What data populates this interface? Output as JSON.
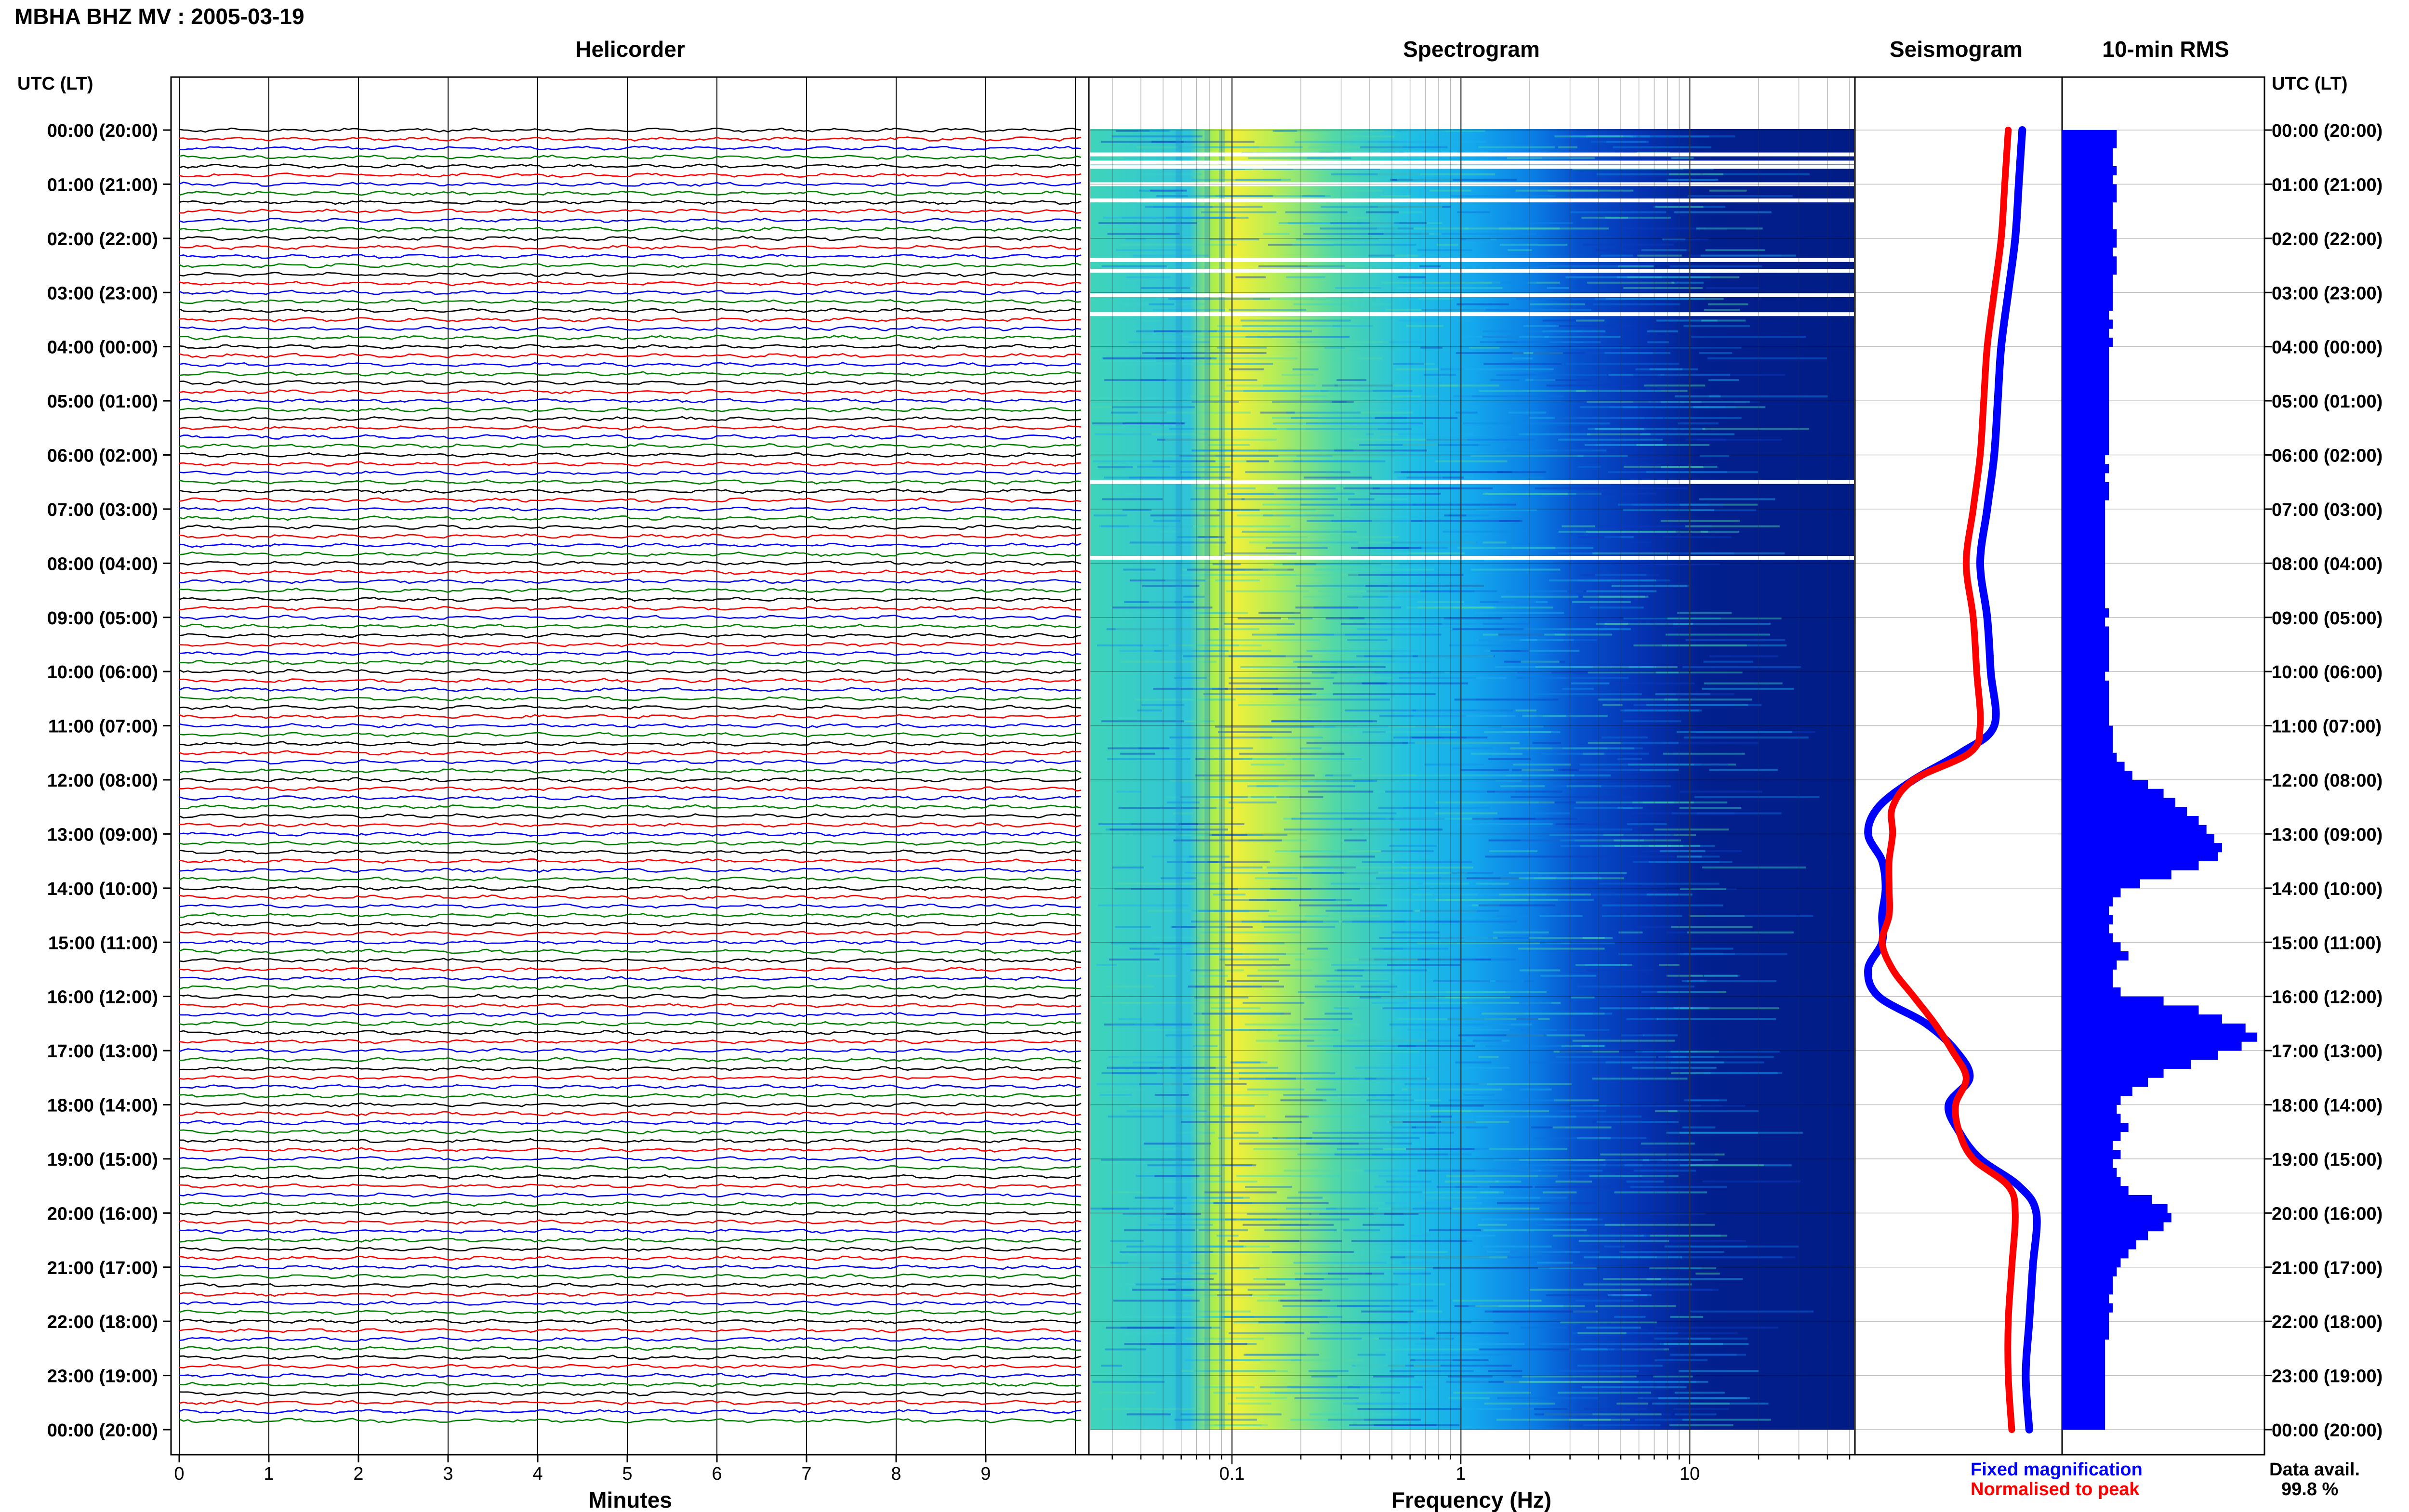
{
  "header": {
    "title": "MBHA BHZ MV : 2005-03-19"
  },
  "panels": {
    "helicorder": {
      "title": "Helicorder",
      "xlabel": "Minutes",
      "ticks": [
        "0",
        "1",
        "2",
        "3",
        "4",
        "5",
        "6",
        "7",
        "8",
        "9"
      ]
    },
    "spectrogram": {
      "title": "Spectrogram",
      "xlabel": "Frequency (Hz)",
      "ticks": [
        "0.1",
        "1",
        "10"
      ]
    },
    "seismogram": {
      "title": "Seismogram"
    },
    "rms": {
      "title": "10-min RMS"
    }
  },
  "axis": {
    "left_label": "UTC (LT)",
    "right_label": "UTC (LT)",
    "time_labels": [
      "00:00 (20:00)",
      "01:00 (21:00)",
      "02:00 (22:00)",
      "03:00 (23:00)",
      "04:00 (00:00)",
      "05:00 (01:00)",
      "06:00 (02:00)",
      "07:00 (03:00)",
      "08:00 (04:00)",
      "09:00 (05:00)",
      "10:00 (06:00)",
      "11:00 (07:00)",
      "12:00 (08:00)",
      "13:00 (09:00)",
      "14:00 (10:00)",
      "15:00 (11:00)",
      "16:00 (12:00)",
      "17:00 (13:00)",
      "18:00 (14:00)",
      "19:00 (15:00)",
      "20:00 (16:00)",
      "21:00 (17:00)",
      "22:00 (18:00)",
      "23:00 (19:00)",
      "00:00 (20:00)"
    ]
  },
  "legend": {
    "fixed": "Fixed magnification",
    "normalised": "Normalised to peak"
  },
  "data_avail": {
    "label": "Data avail.",
    "value": "99.8 %"
  },
  "colors": {
    "trace_cycle": [
      "#000000",
      "#ff0000",
      "#0000ff",
      "#008000"
    ],
    "fixed": "#0000ff",
    "normalised": "#ff0000",
    "rms_bar": "#0000ff"
  },
  "chart_data": {
    "type": "composite",
    "seismogram": {
      "hours": [
        0,
        1,
        2,
        3,
        4,
        5,
        6,
        7,
        8,
        9,
        10,
        11,
        11.5,
        12,
        12.5,
        13,
        13.5,
        14,
        14.5,
        15,
        15.5,
        16,
        16.5,
        17,
        17.5,
        18,
        18.5,
        19,
        19.5,
        20,
        21,
        22,
        23,
        24
      ],
      "fixed": [
        0.8,
        0.78,
        0.76,
        0.72,
        0.68,
        0.66,
        0.64,
        0.6,
        0.56,
        0.6,
        0.62,
        0.64,
        0.45,
        0.18,
        -0.02,
        -0.08,
        0.0,
        0.02,
        0.0,
        0.0,
        -0.08,
        -0.02,
        0.25,
        0.42,
        0.5,
        0.38,
        0.44,
        0.56,
        0.78,
        0.88,
        0.86,
        0.84,
        0.82,
        0.84
      ],
      "normalised": [
        0.72,
        0.7,
        0.68,
        0.64,
        0.6,
        0.58,
        0.56,
        0.52,
        0.48,
        0.52,
        0.54,
        0.56,
        0.5,
        0.18,
        0.06,
        0.06,
        0.04,
        0.04,
        0.04,
        0.0,
        0.06,
        0.18,
        0.3,
        0.4,
        0.48,
        0.42,
        0.44,
        0.52,
        0.72,
        0.76,
        0.74,
        0.72,
        0.72,
        0.74
      ]
    },
    "rms": {
      "interval_minutes": 10,
      "values": [
        0.28,
        0.28,
        0.26,
        0.26,
        0.28,
        0.26,
        0.28,
        0.28,
        0.26,
        0.26,
        0.26,
        0.28,
        0.28,
        0.26,
        0.28,
        0.28,
        0.26,
        0.26,
        0.26,
        0.26,
        0.24,
        0.26,
        0.24,
        0.26,
        0.24,
        0.24,
        0.24,
        0.24,
        0.24,
        0.24,
        0.24,
        0.24,
        0.24,
        0.24,
        0.24,
        0.24,
        0.22,
        0.24,
        0.22,
        0.24,
        0.24,
        0.22,
        0.22,
        0.22,
        0.22,
        0.22,
        0.22,
        0.22,
        0.22,
        0.22,
        0.22,
        0.22,
        0.22,
        0.24,
        0.22,
        0.24,
        0.24,
        0.24,
        0.24,
        0.24,
        0.22,
        0.24,
        0.24,
        0.24,
        0.24,
        0.24,
        0.26,
        0.26,
        0.26,
        0.28,
        0.32,
        0.36,
        0.44,
        0.52,
        0.58,
        0.64,
        0.7,
        0.74,
        0.78,
        0.82,
        0.8,
        0.7,
        0.56,
        0.4,
        0.3,
        0.26,
        0.24,
        0.26,
        0.24,
        0.26,
        0.3,
        0.34,
        0.28,
        0.26,
        0.26,
        0.3,
        0.52,
        0.7,
        0.82,
        0.94,
        1.0,
        0.92,
        0.8,
        0.66,
        0.52,
        0.44,
        0.36,
        0.3,
        0.28,
        0.3,
        0.34,
        0.3,
        0.26,
        0.3,
        0.26,
        0.28,
        0.3,
        0.34,
        0.46,
        0.54,
        0.56,
        0.52,
        0.44,
        0.38,
        0.34,
        0.3,
        0.28,
        0.26,
        0.26,
        0.24,
        0.26,
        0.24,
        0.24,
        0.24,
        0.22,
        0.22,
        0.22,
        0.22,
        0.22,
        0.22,
        0.22,
        0.22,
        0.22,
        0.22
      ]
    }
  }
}
